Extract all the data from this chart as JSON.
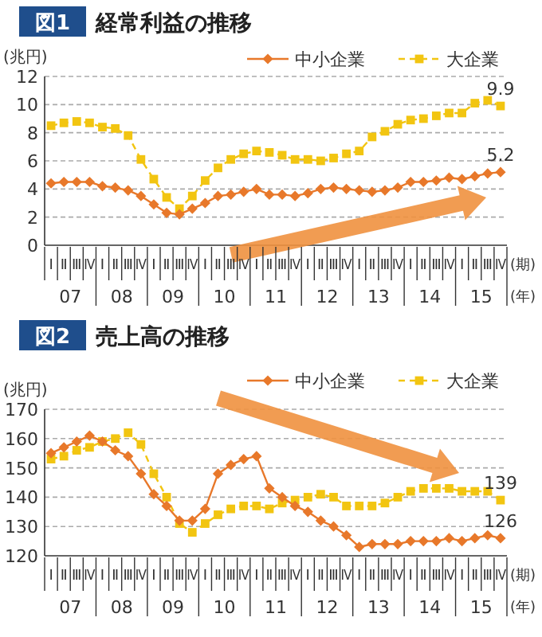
{
  "chart_data": [
    {
      "type": "line",
      "title": "経常利益の推移",
      "ylabel": "(兆円)",
      "xlabel": "(期)",
      "annotations": [
        "図1",
        "(年)",
        "07",
        "08",
        "09",
        "10",
        "11",
        "12",
        "13",
        "14",
        "15"
      ],
      "categories": [
        "Ⅰ",
        "Ⅱ",
        "Ⅲ",
        "Ⅳ",
        "Ⅰ",
        "Ⅱ",
        "Ⅲ",
        "Ⅳ",
        "Ⅰ",
        "Ⅱ",
        "Ⅲ",
        "Ⅳ",
        "Ⅰ",
        "Ⅱ",
        "Ⅲ",
        "Ⅳ",
        "Ⅰ",
        "Ⅱ",
        "Ⅲ",
        "Ⅳ",
        "Ⅰ",
        "Ⅱ",
        "Ⅲ",
        "Ⅳ",
        "Ⅰ",
        "Ⅱ",
        "Ⅲ",
        "Ⅳ",
        "Ⅰ",
        "Ⅱ",
        "Ⅲ",
        "Ⅳ",
        "Ⅰ",
        "Ⅱ",
        "Ⅲ",
        "Ⅳ"
      ],
      "series": [
        {
          "name": "中小企業",
          "color": "#e8782a",
          "marker": "diamond",
          "line_style": "solid",
          "values": [
            4.4,
            4.5,
            4.5,
            4.5,
            4.2,
            4.1,
            3.9,
            3.5,
            2.9,
            2.3,
            2.2,
            2.6,
            3.0,
            3.5,
            3.6,
            3.8,
            4.0,
            3.6,
            3.6,
            3.5,
            3.7,
            4.0,
            4.1,
            4.0,
            3.9,
            3.8,
            3.9,
            4.1,
            4.5,
            4.5,
            4.6,
            4.8,
            4.7,
            4.9,
            5.1,
            5.2
          ],
          "value_labels": [
            null,
            null,
            null,
            null,
            null,
            null,
            null,
            null,
            null,
            null,
            null,
            null,
            null,
            null,
            null,
            null,
            null,
            null,
            null,
            null,
            null,
            null,
            null,
            null,
            null,
            null,
            null,
            null,
            null,
            null,
            null,
            null,
            null,
            null,
            null,
            "5.2"
          ]
        },
        {
          "name": "大企業",
          "color": "#f2c511",
          "marker": "square",
          "line_style": "dashed",
          "values": [
            8.5,
            8.7,
            8.8,
            8.7,
            8.4,
            8.3,
            7.8,
            6.1,
            4.7,
            3.4,
            2.6,
            3.5,
            4.6,
            5.5,
            6.1,
            6.5,
            6.7,
            6.6,
            6.4,
            6.1,
            6.1,
            6.0,
            6.2,
            6.5,
            6.7,
            7.7,
            8.1,
            8.6,
            8.9,
            9.0,
            9.2,
            9.4,
            9.4,
            10.1,
            10.3,
            9.9
          ],
          "value_labels": [
            null,
            null,
            null,
            null,
            null,
            null,
            null,
            null,
            null,
            null,
            null,
            null,
            null,
            null,
            null,
            null,
            null,
            null,
            null,
            null,
            null,
            null,
            null,
            null,
            null,
            null,
            null,
            null,
            null,
            null,
            null,
            null,
            null,
            null,
            null,
            "9.9"
          ]
        }
      ],
      "ylim": [
        0,
        12
      ],
      "yticks": [
        0,
        2,
        4,
        6,
        8,
        10,
        12
      ],
      "grid": "y",
      "legend": "top right"
    },
    {
      "type": "line",
      "title": "売上高の推移",
      "ylabel": "(兆円)",
      "xlabel": "(期)",
      "annotations": [
        "図2",
        "(年)",
        "07",
        "08",
        "09",
        "10",
        "11",
        "12",
        "13",
        "14",
        "15"
      ],
      "categories": [
        "Ⅰ",
        "Ⅱ",
        "Ⅲ",
        "Ⅳ",
        "Ⅰ",
        "Ⅱ",
        "Ⅲ",
        "Ⅳ",
        "Ⅰ",
        "Ⅱ",
        "Ⅲ",
        "Ⅳ",
        "Ⅰ",
        "Ⅱ",
        "Ⅲ",
        "Ⅳ",
        "Ⅰ",
        "Ⅱ",
        "Ⅲ",
        "Ⅳ",
        "Ⅰ",
        "Ⅱ",
        "Ⅲ",
        "Ⅳ",
        "Ⅰ",
        "Ⅱ",
        "Ⅲ",
        "Ⅳ",
        "Ⅰ",
        "Ⅱ",
        "Ⅲ",
        "Ⅳ",
        "Ⅰ",
        "Ⅱ",
        "Ⅲ",
        "Ⅳ"
      ],
      "series": [
        {
          "name": "中小企業",
          "color": "#e8782a",
          "marker": "diamond",
          "line_style": "solid",
          "values": [
            155,
            157,
            159,
            161,
            159,
            156,
            154,
            148,
            141,
            137,
            132,
            132,
            136,
            148,
            151,
            153,
            154,
            143,
            140,
            137,
            135,
            132,
            130,
            127,
            123,
            124,
            124,
            124,
            125,
            125,
            125,
            126,
            125,
            126,
            127,
            126
          ],
          "value_labels": [
            null,
            null,
            null,
            null,
            null,
            null,
            null,
            null,
            null,
            null,
            null,
            null,
            null,
            null,
            null,
            null,
            null,
            null,
            null,
            null,
            null,
            null,
            null,
            null,
            null,
            null,
            null,
            null,
            null,
            null,
            null,
            null,
            null,
            null,
            null,
            "126"
          ]
        },
        {
          "name": "大企業",
          "color": "#f2c511",
          "marker": "square",
          "line_style": "dashed",
          "values": [
            153,
            154,
            156,
            157,
            159,
            160,
            162,
            158,
            148,
            140,
            131,
            128,
            131,
            134,
            136,
            137,
            137,
            136,
            138,
            139,
            140,
            141,
            140,
            137,
            137,
            137,
            138,
            140,
            142,
            143,
            143,
            143,
            142,
            142,
            142,
            139
          ],
          "value_labels": [
            null,
            null,
            null,
            null,
            null,
            null,
            null,
            null,
            null,
            null,
            null,
            null,
            null,
            null,
            null,
            null,
            null,
            null,
            null,
            null,
            null,
            null,
            null,
            null,
            null,
            null,
            null,
            null,
            null,
            null,
            null,
            null,
            null,
            null,
            null,
            "139"
          ]
        }
      ],
      "ylim": [
        120,
        170
      ],
      "yticks": [
        120,
        130,
        140,
        150,
        160,
        170
      ],
      "grid": "y",
      "legend": "top right"
    }
  ]
}
